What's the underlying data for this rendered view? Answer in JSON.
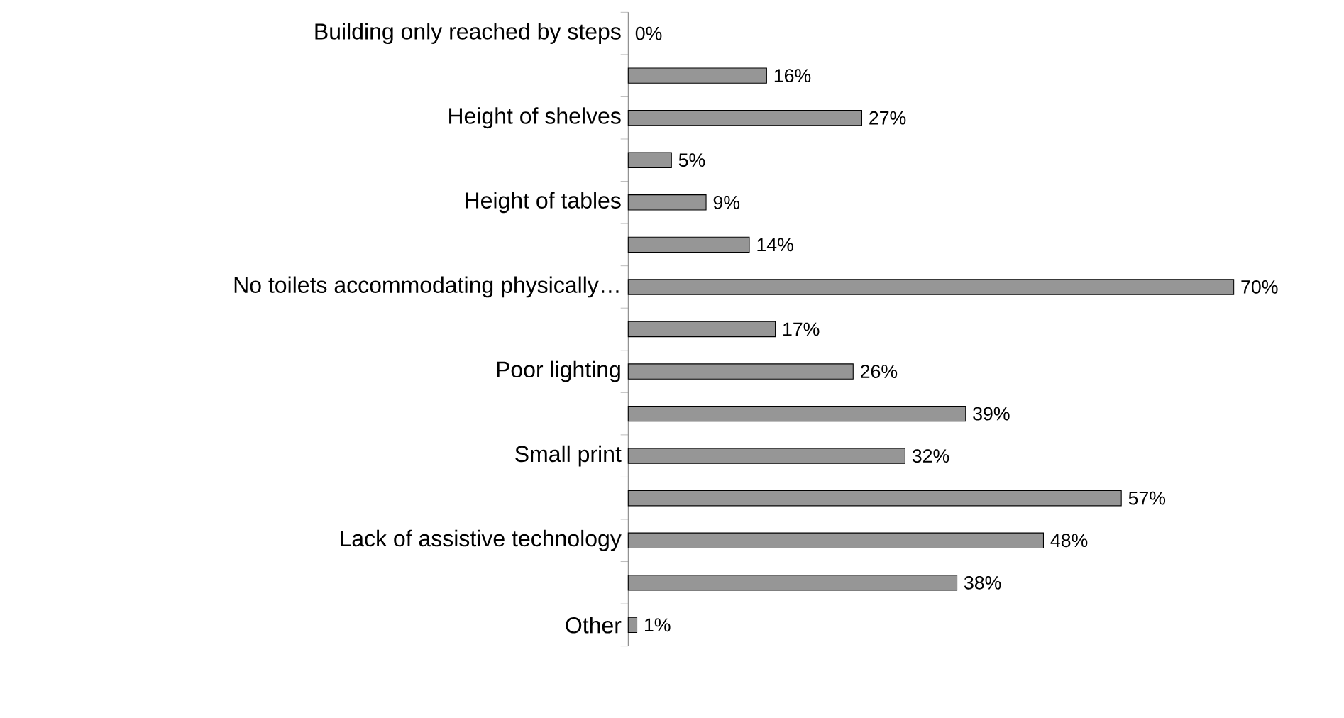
{
  "chart_data": {
    "type": "bar",
    "orientation": "horizontal",
    "categories": [
      "Building only reached by steps",
      null,
      "Height of shelves",
      null,
      "Height of tables",
      null,
      "No toilets accommodating physically…",
      null,
      "Poor lighting",
      null,
      "Small print",
      null,
      "Lack of assistive technology",
      null,
      "Other"
    ],
    "values": [
      0,
      16,
      27,
      5,
      9,
      14,
      70,
      17,
      26,
      39,
      32,
      57,
      48,
      38,
      1
    ],
    "value_labels": [
      "0%",
      "16%",
      "27%",
      "5%",
      "9%",
      "14%",
      "70%",
      "17%",
      "26%",
      "39%",
      "32%",
      "57%",
      "48%",
      "38%",
      "1%"
    ],
    "color": "#969696"
  }
}
